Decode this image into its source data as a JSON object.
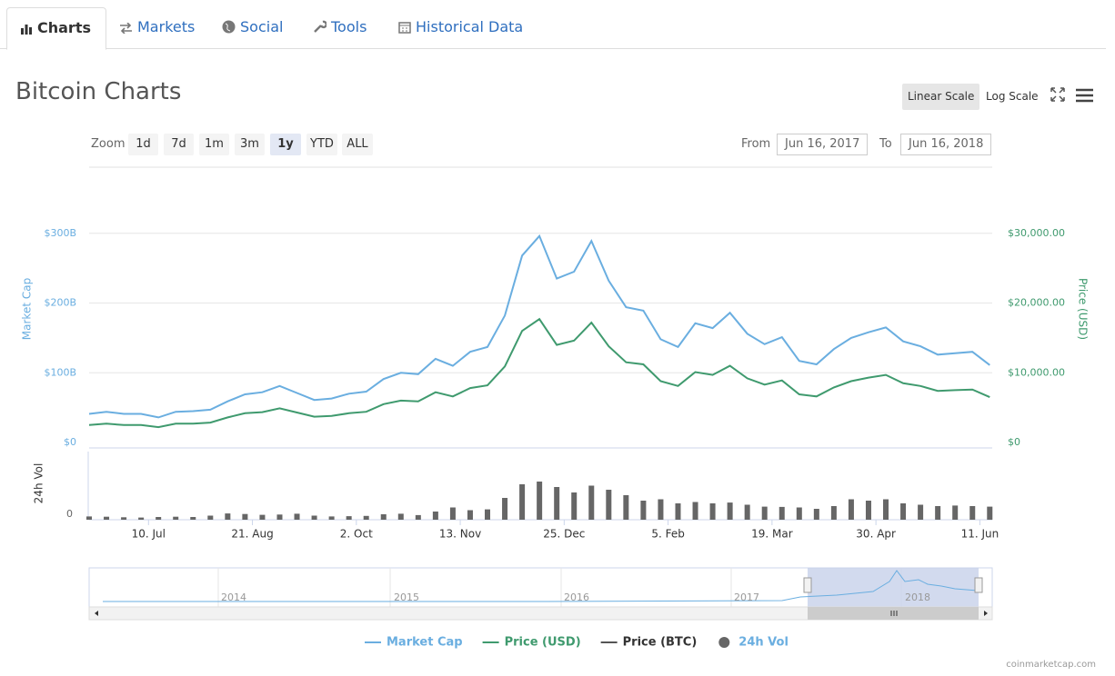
{
  "tabs": [
    "Charts",
    "Markets",
    "Social",
    "Tools",
    "Historical Data"
  ],
  "header": {
    "title": "Bitcoin Charts",
    "scale_buttons": [
      "Linear Scale",
      "Log Scale"
    ]
  },
  "zoom": {
    "label": "Zoom",
    "buttons": [
      "1d",
      "7d",
      "1m",
      "3m",
      "1y",
      "YTD",
      "ALL"
    ],
    "from_label": "From",
    "from": "Jun 16, 2017",
    "to_label": "To",
    "to": "Jun 16, 2018"
  },
  "chart_data": {
    "type": "line",
    "ylabel": "Market Cap",
    "y2label": "Price (USD)",
    "vol_label": "24h Vol",
    "x": [
      "2017-06-16",
      "2017-06-23",
      "2017-06-30",
      "2017-07-07",
      "2017-07-14",
      "2017-07-21",
      "2017-07-28",
      "2017-08-04",
      "2017-08-11",
      "2017-08-18",
      "2017-08-25",
      "2017-09-01",
      "2017-09-08",
      "2017-09-15",
      "2017-09-22",
      "2017-09-29",
      "2017-10-06",
      "2017-10-13",
      "2017-10-20",
      "2017-10-27",
      "2017-11-03",
      "2017-11-10",
      "2017-11-17",
      "2017-11-24",
      "2017-12-01",
      "2017-12-08",
      "2017-12-15",
      "2017-12-22",
      "2017-12-29",
      "2018-01-05",
      "2018-01-12",
      "2018-01-19",
      "2018-01-26",
      "2018-02-02",
      "2018-02-09",
      "2018-02-16",
      "2018-02-23",
      "2018-03-02",
      "2018-03-09",
      "2018-03-16",
      "2018-03-23",
      "2018-03-30",
      "2018-04-06",
      "2018-04-13",
      "2018-04-20",
      "2018-04-27",
      "2018-05-04",
      "2018-05-11",
      "2018-05-18",
      "2018-05-25",
      "2018-06-01",
      "2018-06-08",
      "2018-06-15"
    ],
    "xlim": [
      "2017-06-16",
      "2018-06-16"
    ],
    "xticks": [
      {
        "value": "2017-07-10",
        "label": "10. Jul"
      },
      {
        "value": "2017-08-21",
        "label": "21. Aug"
      },
      {
        "value": "2017-10-02",
        "label": "2. Oct"
      },
      {
        "value": "2017-11-13",
        "label": "13. Nov"
      },
      {
        "value": "2017-12-25",
        "label": "25. Dec"
      },
      {
        "value": "2018-02-05",
        "label": "5. Feb"
      },
      {
        "value": "2018-03-19",
        "label": "19. Mar"
      },
      {
        "value": "2018-04-30",
        "label": "30. Apr"
      },
      {
        "value": "2018-06-11",
        "label": "11. Jun"
      }
    ],
    "ylim": [
      0,
      400000000000.0
    ],
    "yticks": [
      {
        "value": 0,
        "label": "$0"
      },
      {
        "value": 100000000000.0,
        "label": "$100B"
      },
      {
        "value": 200000000000.0,
        "label": "$200B"
      },
      {
        "value": 300000000000.0,
        "label": "$300B"
      }
    ],
    "y2lim": [
      0,
      40000
    ],
    "y2ticks": [
      {
        "value": 0,
        "label": "$0"
      },
      {
        "value": 10000,
        "label": "$10,000.00"
      },
      {
        "value": 20000,
        "label": "$20,000.00"
      },
      {
        "value": 30000,
        "label": "$30,000.00"
      }
    ],
    "vol_ylim": [
      0,
      25000000000.0
    ],
    "vol_yticks": [
      0
    ],
    "grid": true,
    "series": [
      {
        "name": "Market Cap",
        "color": "#6aaee0",
        "axis": "y",
        "values": [
          41000000000.0,
          44000000000.0,
          41000000000.0,
          41000000000.0,
          36000000000.0,
          44000000000.0,
          45000000000.0,
          47000000000.0,
          59000000000.0,
          69000000000.0,
          72000000000.0,
          81000000000.0,
          71000000000.0,
          61000000000.0,
          63000000000.0,
          70000000000.0,
          73000000000.0,
          91000000000.0,
          100000000000.0,
          98000000000.0,
          120000000000.0,
          110000000000.0,
          130000000000.0,
          137000000000.0,
          182000000000.0,
          268000000000.0,
          296000000000.0,
          235000000000.0,
          245000000000.0,
          289000000000.0,
          232000000000.0,
          194000000000.0,
          189000000000.0,
          148000000000.0,
          137000000000.0,
          171000000000.0,
          164000000000.0,
          186000000000.0,
          156000000000.0,
          141000000000.0,
          151000000000.0,
          117000000000.0,
          112000000000.0,
          134000000000.0,
          150000000000.0,
          158000000000.0,
          165000000000.0,
          145000000000.0,
          138000000000.0,
          126000000000.0,
          128000000000.0,
          130000000000.0,
          111000000000.0
        ]
      },
      {
        "name": "Price (USD)",
        "color": "#3f9a6e",
        "axis": "y2",
        "values": [
          2500,
          2700,
          2500,
          2500,
          2200,
          2700,
          2700,
          2850,
          3600,
          4200,
          4350,
          4900,
          4300,
          3700,
          3800,
          4200,
          4400,
          5500,
          6000,
          5900,
          7200,
          6600,
          7800,
          8200,
          10900,
          16000,
          17700,
          14000,
          14600,
          17200,
          13800,
          11500,
          11200,
          8800,
          8100,
          10100,
          9700,
          11000,
          9200,
          8300,
          8900,
          6900,
          6600,
          7900,
          8800,
          9300,
          9700,
          8500,
          8100,
          7400,
          7500,
          7600,
          6500
        ]
      },
      {
        "name": "Price (BTC)",
        "color": "#555555",
        "visible": false
      },
      {
        "name": "24h Vol",
        "color": "#666666",
        "axis": "vol",
        "type": "bar",
        "values": [
          1200000000.0,
          1100000000.0,
          900000000.0,
          800000000.0,
          1000000000.0,
          1100000000.0,
          1000000000.0,
          1500000000.0,
          2300000000.0,
          2100000000.0,
          1800000000.0,
          1900000000.0,
          2200000000.0,
          1500000000.0,
          1200000000.0,
          1300000000.0,
          1400000000.0,
          2000000000.0,
          2200000000.0,
          1700000000.0,
          3000000000.0,
          4500000000.0,
          3500000000.0,
          3800000000.0,
          8000000000.0,
          13000000000.0,
          14000000000.0,
          12000000000.0,
          10000000000.0,
          12500000000.0,
          11000000000.0,
          9000000000.0,
          7000000000.0,
          7500000000.0,
          6000000000.0,
          6500000000.0,
          6000000000.0,
          6300000000.0,
          5500000000.0,
          4800000000.0,
          4700000000.0,
          4500000000.0,
          4000000000.0,
          5000000000.0,
          7500000000.0,
          7000000000.0,
          7500000000.0,
          6000000000.0,
          5500000000.0,
          5000000000.0,
          5200000000.0,
          5000000000.0,
          4800000000.0
        ]
      }
    ]
  },
  "navigator": {
    "labels": [
      "2014",
      "2015",
      "2016",
      "2017",
      "2018"
    ]
  },
  "credit": "coinmarketcap.com"
}
